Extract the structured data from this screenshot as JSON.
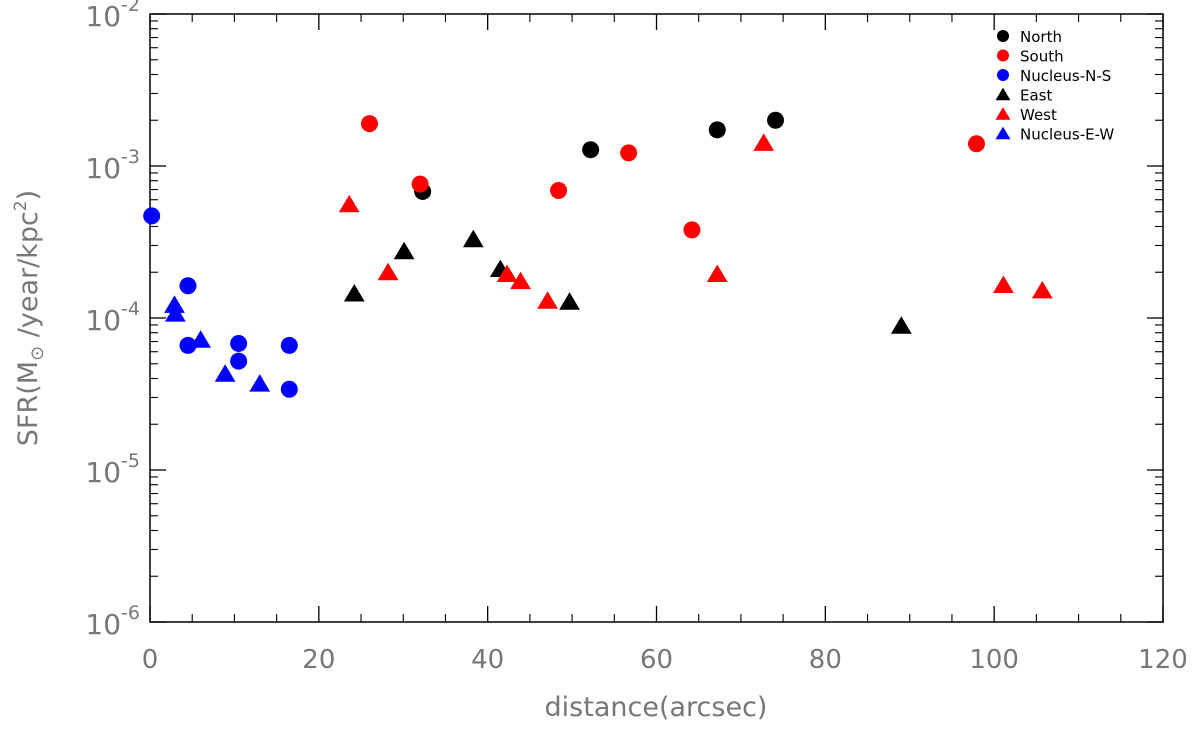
{
  "chart_data": {
    "type": "scatter",
    "title": "",
    "xlabel": "distance(arcsec)",
    "ylabel_parts": {
      "prefix": "SFR(M",
      "symbol": "⊙",
      "middle": " /year/kpc",
      "exponent": "2",
      "suffix": ")"
    },
    "x_scale": "linear",
    "y_scale": "log",
    "xlim": [
      0,
      120
    ],
    "ylim": [
      1e-06,
      0.01
    ],
    "x_ticks": [
      0,
      20,
      40,
      60,
      80,
      100,
      120
    ],
    "x_tick_labels": [
      "0",
      "20",
      "40",
      "60",
      "80",
      "100",
      "120"
    ],
    "y_ticks": [
      1e-06,
      1e-05,
      0.0001,
      0.001,
      0.01
    ],
    "y_tick_labels": [
      {
        "base": "10",
        "exp": "-6"
      },
      {
        "base": "10",
        "exp": "-5"
      },
      {
        "base": "10",
        "exp": "-4"
      },
      {
        "base": "10",
        "exp": "-3"
      },
      {
        "base": "10",
        "exp": "-2"
      }
    ],
    "grid": false,
    "legend_position": "top-right",
    "series": [
      {
        "name": "North",
        "marker": "circle",
        "color": "#000000",
        "points": [
          [
            32.3,
            0.00068
          ],
          [
            52.2,
            0.00128
          ],
          [
            67.2,
            0.00173
          ],
          [
            74.1,
            0.002
          ]
        ]
      },
      {
        "name": "South",
        "marker": "circle",
        "color": "#ff0000",
        "points": [
          [
            26.0,
            0.0019
          ],
          [
            32.0,
            0.00076
          ],
          [
            48.4,
            0.00069
          ],
          [
            56.7,
            0.00122
          ],
          [
            64.2,
            0.00038
          ],
          [
            97.9,
            0.0014
          ]
        ]
      },
      {
        "name": "Nucleus-N-S",
        "marker": "circle",
        "color": "#0000ff",
        "points": [
          [
            0.2,
            0.00047
          ],
          [
            4.5,
            0.000163
          ],
          [
            4.5,
            6.6e-05
          ],
          [
            10.5,
            6.8e-05
          ],
          [
            10.5,
            5.2e-05
          ],
          [
            16.5,
            6.6e-05
          ],
          [
            16.5,
            3.4e-05
          ]
        ]
      },
      {
        "name": "East",
        "marker": "triangle",
        "color": "#000000",
        "points": [
          [
            24.2,
            0.000145
          ],
          [
            30.1,
            0.000275
          ],
          [
            38.3,
            0.00033
          ],
          [
            41.5,
            0.00021
          ],
          [
            49.7,
            0.000128
          ],
          [
            89.0,
            8.9e-05
          ]
        ]
      },
      {
        "name": "West",
        "marker": "triangle",
        "color": "#ff0000",
        "points": [
          [
            23.6,
            0.00056
          ],
          [
            28.2,
            0.0002
          ],
          [
            42.3,
            0.000195
          ],
          [
            43.9,
            0.000175
          ],
          [
            47.1,
            0.00013
          ],
          [
            67.2,
            0.000195
          ],
          [
            72.7,
            0.00142
          ],
          [
            101.1,
            0.000165
          ],
          [
            105.7,
            0.000152
          ]
        ]
      },
      {
        "name": "Nucleus-E-W",
        "marker": "triangle",
        "color": "#0000ff",
        "points": [
          [
            2.9,
            0.000122
          ],
          [
            3.0,
            0.000107
          ],
          [
            6.0,
            7.2e-05
          ],
          [
            8.9,
            4.3e-05
          ],
          [
            13.0,
            3.7e-05
          ]
        ]
      }
    ]
  }
}
